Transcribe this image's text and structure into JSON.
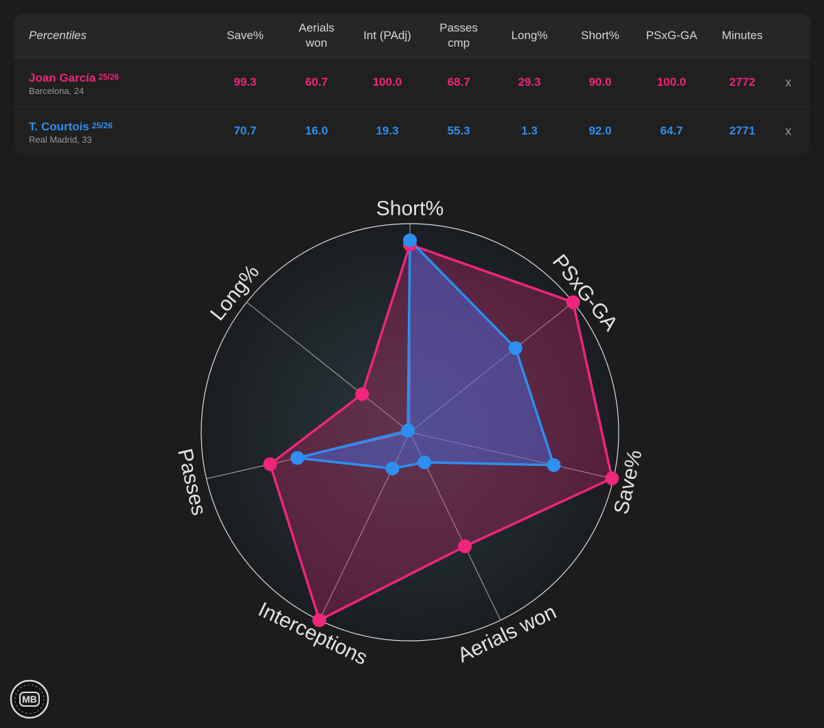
{
  "table": {
    "title": "Percentiles",
    "columns": [
      {
        "label": "Save%"
      },
      {
        "label": "Aerials\nwon"
      },
      {
        "label": "Int (PAdj)"
      },
      {
        "label": "Passes\ncmp"
      },
      {
        "label": "Long%"
      },
      {
        "label": "Short%"
      },
      {
        "label": "PSxG-GA"
      },
      {
        "label": "Minutes"
      }
    ],
    "players": [
      {
        "name": "Joan García",
        "season": "25/26",
        "club_age": "Barcelona, 24",
        "values": [
          "99.3",
          "60.7",
          "100.0",
          "68.7",
          "29.3",
          "90.0",
          "100.0",
          "2772"
        ],
        "remove": "x",
        "color": "#f0257d"
      },
      {
        "name": "T. Courtois",
        "season": "25/26",
        "club_age": "Real Madrid, 33",
        "values": [
          "70.7",
          "16.0",
          "19.3",
          "55.3",
          "1.3",
          "92.0",
          "64.7",
          "2771"
        ],
        "remove": "x",
        "color": "#2d8ff0"
      }
    ]
  },
  "chart_data": {
    "type": "radar",
    "axes": [
      "Short%",
      "PSxG-GA",
      "Save%",
      "Aerials won",
      "Interceptions",
      "Passes",
      "Long%"
    ],
    "range": [
      0,
      100
    ],
    "series": [
      {
        "name": "Joan García",
        "color": "#f0257d",
        "values": [
          90.0,
          100.0,
          99.3,
          60.7,
          100.0,
          68.7,
          29.3
        ]
      },
      {
        "name": "T. Courtois",
        "color": "#2d8ff0",
        "values": [
          92.0,
          64.7,
          70.7,
          16.0,
          19.3,
          55.3,
          1.3
        ]
      }
    ]
  },
  "logo": {
    "text": "MB"
  }
}
